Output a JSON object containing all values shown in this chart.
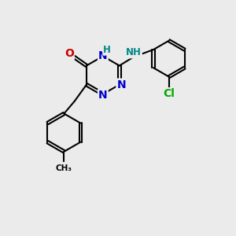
{
  "background_color": "#ebebeb",
  "bond_color": "#000000",
  "bond_width": 1.5,
  "atom_colors": {
    "N": "#0000cc",
    "O": "#cc0000",
    "Cl": "#00aa00",
    "NH": "#008888",
    "C": "#000000"
  },
  "font_size_atom": 10,
  "font_size_h": 8.5,
  "dbl_off": 0.055
}
